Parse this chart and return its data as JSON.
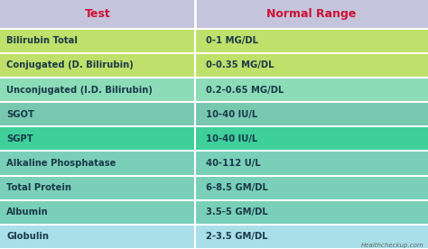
{
  "header": [
    "Test",
    "Normal Range"
  ],
  "rows": [
    [
      "Bilirubin Total",
      "0-1 MG/DL"
    ],
    [
      "Conjugated (D. Bilirubin)",
      "0-0.35 MG/DL"
    ],
    [
      "Unconjugated (I.D. Bilirubin)",
      "0.2-0.65 MG/DL"
    ],
    [
      "SGOT",
      "10-40 IU/L"
    ],
    [
      "SGPT",
      "10-40 IU/L"
    ],
    [
      "Alkaline Phosphatase",
      "40-112 U/L"
    ],
    [
      "Total Protein",
      "6-8.5 GM/DL"
    ],
    [
      "Albumin",
      "3.5-5 GM/DL"
    ],
    [
      "Globulin",
      "2-3.5 GM/DL"
    ]
  ],
  "row_colors": [
    "#bfe06a",
    "#bfe06a",
    "#8ddcb8",
    "#78c8b0",
    "#3ecf9a",
    "#7acfb8",
    "#7acfb8",
    "#7acfb8",
    "#a8dfe8"
  ],
  "header_bg": "#c4c4dc",
  "header_text_color": "#cc1133",
  "cell_text_color": "#1a3a4a",
  "divider_color": "#ffffff",
  "watermark": "Healthcheckup.com",
  "watermark_color": "#666666",
  "col_split": 0.455
}
